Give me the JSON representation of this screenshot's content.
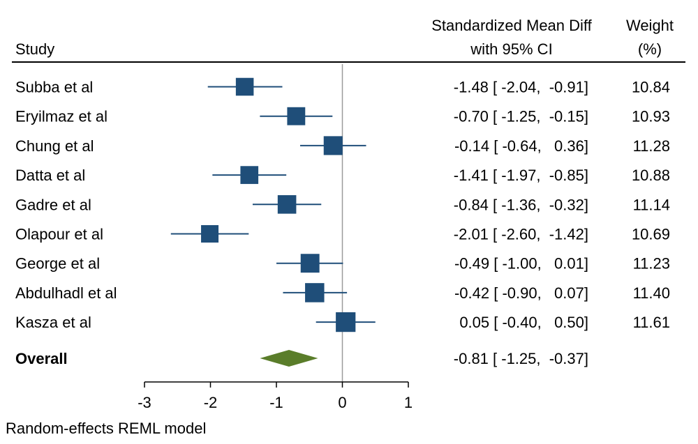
{
  "chart_data": {
    "type": "forest",
    "headers": {
      "study": "Study",
      "effect_line1": "Standardized Mean Diff",
      "effect_line2": "with 95% CI",
      "weight_line1": "Weight",
      "weight_line2": "(%)"
    },
    "studies": [
      {
        "name": "Subba et al",
        "smd": -1.48,
        "lo": -2.04,
        "hi": -0.91,
        "weight": 10.84,
        "ci_text": "-1.48 [ -2.04,  -0.91]",
        "weight_text": "10.84"
      },
      {
        "name": "Eryilmaz et al",
        "smd": -0.7,
        "lo": -1.25,
        "hi": -0.15,
        "weight": 10.93,
        "ci_text": "-0.70 [ -1.25,  -0.15]",
        "weight_text": "10.93"
      },
      {
        "name": "Chung et al",
        "smd": -0.14,
        "lo": -0.64,
        "hi": 0.36,
        "weight": 11.28,
        "ci_text": "-0.14 [ -0.64,   0.36]",
        "weight_text": "11.28"
      },
      {
        "name": "Datta et al",
        "smd": -1.41,
        "lo": -1.97,
        "hi": -0.85,
        "weight": 10.88,
        "ci_text": "-1.41 [ -1.97,  -0.85]",
        "weight_text": "10.88"
      },
      {
        "name": "Gadre et al",
        "smd": -0.84,
        "lo": -1.36,
        "hi": -0.32,
        "weight": 11.14,
        "ci_text": "-0.84 [ -1.36,  -0.32]",
        "weight_text": "11.14"
      },
      {
        "name": "Olapour et al",
        "smd": -2.01,
        "lo": -2.6,
        "hi": -1.42,
        "weight": 10.69,
        "ci_text": "-2.01 [ -2.60,  -1.42]",
        "weight_text": "10.69"
      },
      {
        "name": "George et al",
        "smd": -0.49,
        "lo": -1.0,
        "hi": 0.01,
        "weight": 11.23,
        "ci_text": "-0.49 [ -1.00,   0.01]",
        "weight_text": "11.23"
      },
      {
        "name": "Abdulhadl et al",
        "smd": -0.42,
        "lo": -0.9,
        "hi": 0.07,
        "weight": 11.4,
        "ci_text": "-0.42 [ -0.90,   0.07]",
        "weight_text": "11.40"
      },
      {
        "name": "Kasza et al",
        "smd": 0.05,
        "lo": -0.4,
        "hi": 0.5,
        "weight": 11.61,
        "ci_text": " 0.05 [ -0.40,   0.50]",
        "weight_text": "11.61"
      }
    ],
    "overall": {
      "name": "Overall",
      "smd": -0.81,
      "lo": -1.25,
      "hi": -0.37,
      "ci_text": "-0.81 [ -1.25,  -0.37]"
    },
    "x_ticks": [
      -3,
      -2,
      -1,
      0,
      1
    ],
    "x_tick_labels": [
      "-3",
      "-2",
      "-1",
      "0",
      "1"
    ],
    "xlim": [
      -3,
      1
    ],
    "null_line": 0,
    "footnote": "Random-effects REML model",
    "colors": {
      "marker": "#1f4e79",
      "diamond": "#5a7d2a",
      "line": "#000000",
      "ref_line": "#9a9a9a"
    }
  }
}
